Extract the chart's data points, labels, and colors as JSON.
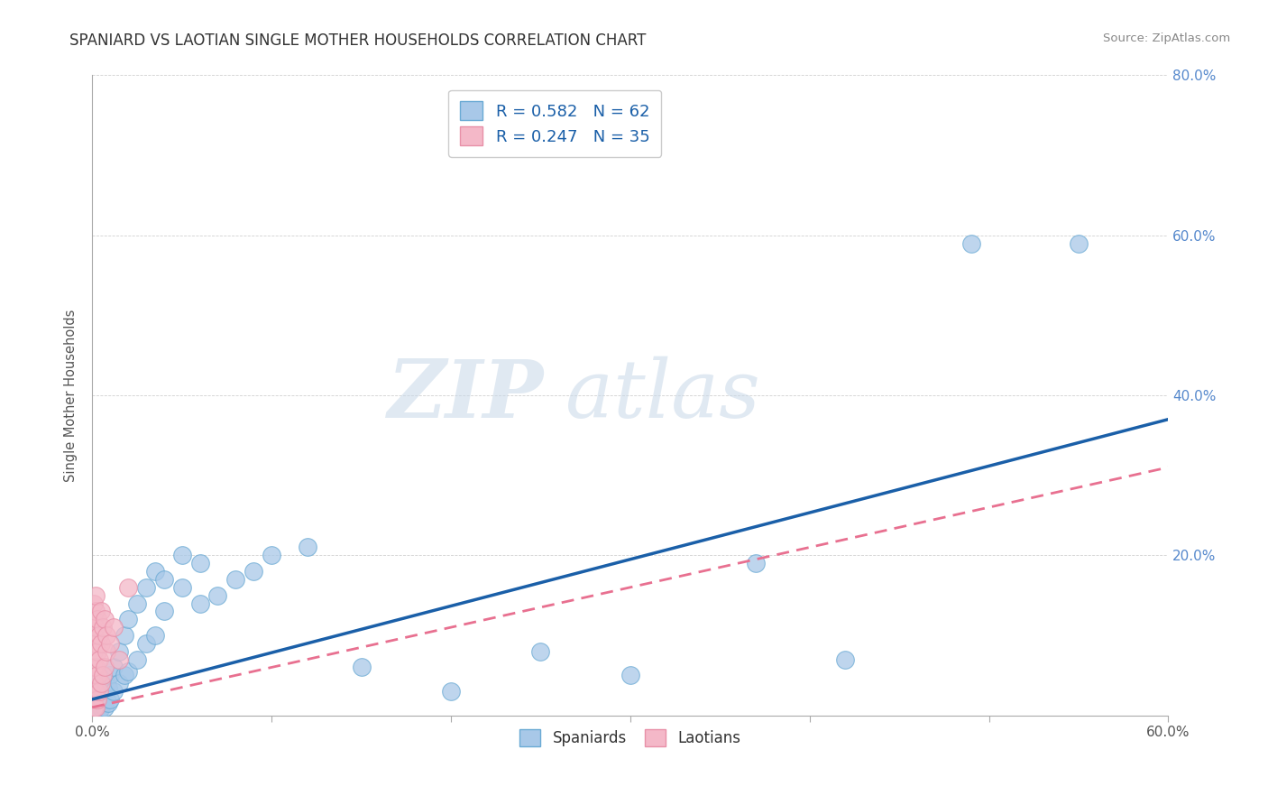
{
  "title": "SPANIARD VS LAOTIAN SINGLE MOTHER HOUSEHOLDS CORRELATION CHART",
  "source_text": "Source: ZipAtlas.com",
  "ylabel": "Single Mother Households",
  "xlim": [
    0.0,
    0.6
  ],
  "ylim": [
    0.0,
    0.8
  ],
  "xtick_positions": [
    0.0,
    0.1,
    0.2,
    0.3,
    0.4,
    0.5,
    0.6
  ],
  "xtick_labels_show": [
    "0.0%",
    "",
    "",
    "",
    "",
    "",
    "60.0%"
  ],
  "ytick_positions": [
    0.0,
    0.2,
    0.4,
    0.6,
    0.8
  ],
  "ytick_labels_right": [
    "",
    "20.0%",
    "40.0%",
    "60.0%",
    "80.0%"
  ],
  "spaniard_color": "#a8c8e8",
  "spaniard_edge_color": "#6aaad4",
  "laotian_color": "#f4b8c8",
  "laotian_edge_color": "#e890a8",
  "spaniard_line_color": "#1a5fa8",
  "laotian_line_color": "#e87090",
  "r_spaniard": 0.582,
  "n_spaniard": 62,
  "r_laotian": 0.247,
  "n_laotian": 35,
  "legend_label_spaniards": "Spaniards",
  "legend_label_laotians": "Laotians",
  "watermark_zip": "ZIP",
  "watermark_atlas": "atlas",
  "background_color": "#ffffff",
  "spaniard_points": [
    [
      0.001,
      0.005
    ],
    [
      0.001,
      0.01
    ],
    [
      0.001,
      0.02
    ],
    [
      0.001,
      0.03
    ],
    [
      0.002,
      0.005
    ],
    [
      0.002,
      0.015
    ],
    [
      0.002,
      0.025
    ],
    [
      0.002,
      0.035
    ],
    [
      0.003,
      0.01
    ],
    [
      0.003,
      0.02
    ],
    [
      0.003,
      0.03
    ],
    [
      0.003,
      0.04
    ],
    [
      0.004,
      0.005
    ],
    [
      0.004,
      0.015
    ],
    [
      0.004,
      0.025
    ],
    [
      0.005,
      0.01
    ],
    [
      0.005,
      0.02
    ],
    [
      0.005,
      0.04
    ],
    [
      0.006,
      0.015
    ],
    [
      0.006,
      0.025
    ],
    [
      0.006,
      0.035
    ],
    [
      0.007,
      0.01
    ],
    [
      0.007,
      0.03
    ],
    [
      0.008,
      0.02
    ],
    [
      0.008,
      0.04
    ],
    [
      0.009,
      0.015
    ],
    [
      0.009,
      0.035
    ],
    [
      0.01,
      0.02
    ],
    [
      0.01,
      0.05
    ],
    [
      0.012,
      0.03
    ],
    [
      0.012,
      0.06
    ],
    [
      0.015,
      0.04
    ],
    [
      0.015,
      0.08
    ],
    [
      0.018,
      0.05
    ],
    [
      0.018,
      0.1
    ],
    [
      0.02,
      0.055
    ],
    [
      0.02,
      0.12
    ],
    [
      0.025,
      0.07
    ],
    [
      0.025,
      0.14
    ],
    [
      0.03,
      0.09
    ],
    [
      0.03,
      0.16
    ],
    [
      0.035,
      0.1
    ],
    [
      0.035,
      0.18
    ],
    [
      0.04,
      0.13
    ],
    [
      0.04,
      0.17
    ],
    [
      0.05,
      0.16
    ],
    [
      0.05,
      0.2
    ],
    [
      0.06,
      0.14
    ],
    [
      0.06,
      0.19
    ],
    [
      0.07,
      0.15
    ],
    [
      0.08,
      0.17
    ],
    [
      0.09,
      0.18
    ],
    [
      0.1,
      0.2
    ],
    [
      0.12,
      0.21
    ],
    [
      0.15,
      0.06
    ],
    [
      0.2,
      0.03
    ],
    [
      0.25,
      0.08
    ],
    [
      0.3,
      0.05
    ],
    [
      0.37,
      0.19
    ],
    [
      0.42,
      0.07
    ],
    [
      0.49,
      0.59
    ],
    [
      0.55,
      0.59
    ]
  ],
  "laotian_points": [
    [
      0.001,
      0.01
    ],
    [
      0.001,
      0.02
    ],
    [
      0.001,
      0.04
    ],
    [
      0.001,
      0.06
    ],
    [
      0.001,
      0.08
    ],
    [
      0.001,
      0.1
    ],
    [
      0.001,
      0.12
    ],
    [
      0.001,
      0.14
    ],
    [
      0.002,
      0.01
    ],
    [
      0.002,
      0.03
    ],
    [
      0.002,
      0.06
    ],
    [
      0.002,
      0.09
    ],
    [
      0.002,
      0.11
    ],
    [
      0.002,
      0.13
    ],
    [
      0.002,
      0.15
    ],
    [
      0.003,
      0.02
    ],
    [
      0.003,
      0.05
    ],
    [
      0.003,
      0.08
    ],
    [
      0.003,
      0.12
    ],
    [
      0.004,
      0.03
    ],
    [
      0.004,
      0.07
    ],
    [
      0.004,
      0.1
    ],
    [
      0.005,
      0.04
    ],
    [
      0.005,
      0.09
    ],
    [
      0.005,
      0.13
    ],
    [
      0.006,
      0.05
    ],
    [
      0.006,
      0.11
    ],
    [
      0.007,
      0.06
    ],
    [
      0.007,
      0.12
    ],
    [
      0.008,
      0.08
    ],
    [
      0.008,
      0.1
    ],
    [
      0.01,
      0.09
    ],
    [
      0.012,
      0.11
    ],
    [
      0.015,
      0.07
    ],
    [
      0.02,
      0.16
    ]
  ]
}
